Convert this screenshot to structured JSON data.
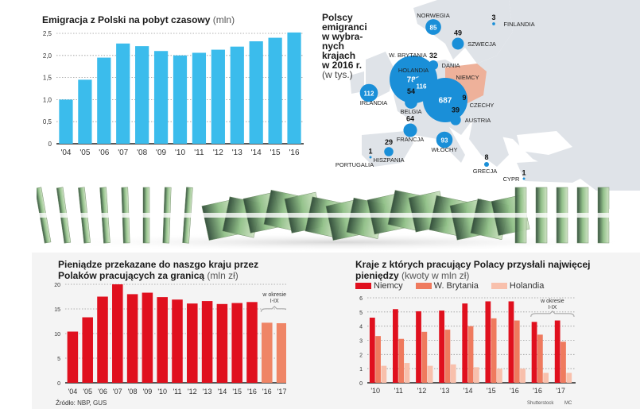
{
  "chart_data": [
    {
      "type": "bar",
      "title": "Emigracja z Polski na pobyt czasowy",
      "unit": "(mln)",
      "xlabel": "",
      "ylabel": "",
      "categories": [
        "'04",
        "'05",
        "'06",
        "'07",
        "'08",
        "'09",
        "'10",
        "'11",
        "'12",
        "'13",
        "'14",
        "'15",
        "'16"
      ],
      "values": [
        1.0,
        1.45,
        1.95,
        2.27,
        2.21,
        2.1,
        2.0,
        2.06,
        2.13,
        2.2,
        2.32,
        2.4,
        2.52
      ],
      "ylim": [
        0,
        2.5
      ],
      "yticks": [
        "0",
        "0,5",
        "1,0",
        "1,5",
        "2,0",
        "2,5"
      ],
      "grid": true,
      "color": "#3bbcec"
    },
    {
      "type": "bar",
      "title": "Pieniądze przekazane do naszgo kraju przez Polaków pracujących za granicą",
      "unit": "(mln zł)",
      "categories": [
        "'04",
        "'05",
        "'06",
        "'07",
        "'08",
        "'09",
        "'10",
        "'11",
        "'12",
        "'13",
        "'14",
        "'15",
        "'16",
        "'16",
        "'17"
      ],
      "values": [
        10.4,
        13.3,
        17.5,
        20.0,
        18.0,
        18.3,
        17.4,
        16.9,
        16.1,
        16.6,
        16.0,
        16.2,
        16.4,
        12.2,
        12.1
      ],
      "period_note": "w okresie I-IX",
      "partial_from_index": 13,
      "ylim": [
        0,
        20
      ],
      "yticks": [
        "0",
        "5",
        "10",
        "15",
        "20"
      ],
      "grid": true,
      "colors": {
        "full": "#e0101e",
        "partial": "#ef8566"
      }
    },
    {
      "type": "bar",
      "title": "Kraje z których pracujący  Polacy przysłali najwięcej pieniędzy",
      "unit": "(kwoty w mln zł)",
      "categories": [
        "'10",
        "'11",
        "'12",
        "'13",
        "'14",
        "'15",
        "'16",
        "'16",
        "'17"
      ],
      "series": [
        {
          "name": "Niemcy",
          "color": "#e0101e",
          "values": [
            4.6,
            5.2,
            5.05,
            5.1,
            5.6,
            5.75,
            5.75,
            4.3,
            4.4
          ]
        },
        {
          "name": "W. Brytania",
          "color": "#ef7a5e",
          "values": [
            3.3,
            3.1,
            3.6,
            3.75,
            4.0,
            4.55,
            4.4,
            3.4,
            2.9
          ]
        },
        {
          "name": "Holandia",
          "color": "#f8c0ac",
          "values": [
            1.2,
            1.4,
            1.2,
            1.3,
            1.1,
            1.0,
            1.0,
            0.7,
            0.7
          ]
        }
      ],
      "period_note": "w okresie I-IX",
      "partial_from_index": 7,
      "ylim": [
        0,
        6
      ],
      "yticks": [
        "0",
        "1",
        "2",
        "3",
        "4",
        "5",
        "6"
      ],
      "grid": true,
      "legend": "top-left"
    },
    {
      "type": "map",
      "title": "Polscy emigranci w wybranych krajach w 2016 r.",
      "title_lines": [
        "Polscy",
        "emigranci",
        "w wybra-",
        "nych",
        "krajach",
        "w 2016 r."
      ],
      "unit": "(w tys.)",
      "points": [
        {
          "country": "W. BRYTANIA",
          "value": 788
        },
        {
          "country": "NIEMCY",
          "value": 687
        },
        {
          "country": "HOLANDIA",
          "value": 116
        },
        {
          "country": "IRLANDIA",
          "value": 112
        },
        {
          "country": "WŁOCHY",
          "value": 93
        },
        {
          "country": "NORWEGIA",
          "value": 85
        },
        {
          "country": "FRANCJA",
          "value": 64
        },
        {
          "country": "BELGIA",
          "value": 54
        },
        {
          "country": "SZWECJA",
          "value": 49
        },
        {
          "country": "AUSTRIA",
          "value": 39
        },
        {
          "country": "DANIA",
          "value": 32
        },
        {
          "country": "HISZPANIA",
          "value": 29
        },
        {
          "country": "CZECHY",
          "value": 9
        },
        {
          "country": "GRECJA",
          "value": 8
        },
        {
          "country": "FINLANDIA",
          "value": 3
        },
        {
          "country": "PORTUGALIA",
          "value": 1
        },
        {
          "country": "CYPR",
          "value": 1
        }
      ],
      "highlight": "Polska",
      "bubble_color": "#1a8fd8",
      "highlight_color": "#eeb19a"
    }
  ],
  "footer": {
    "source": "Źródło: NBP, GUS",
    "photo_credit": "Shutterstock",
    "author": "MC"
  }
}
